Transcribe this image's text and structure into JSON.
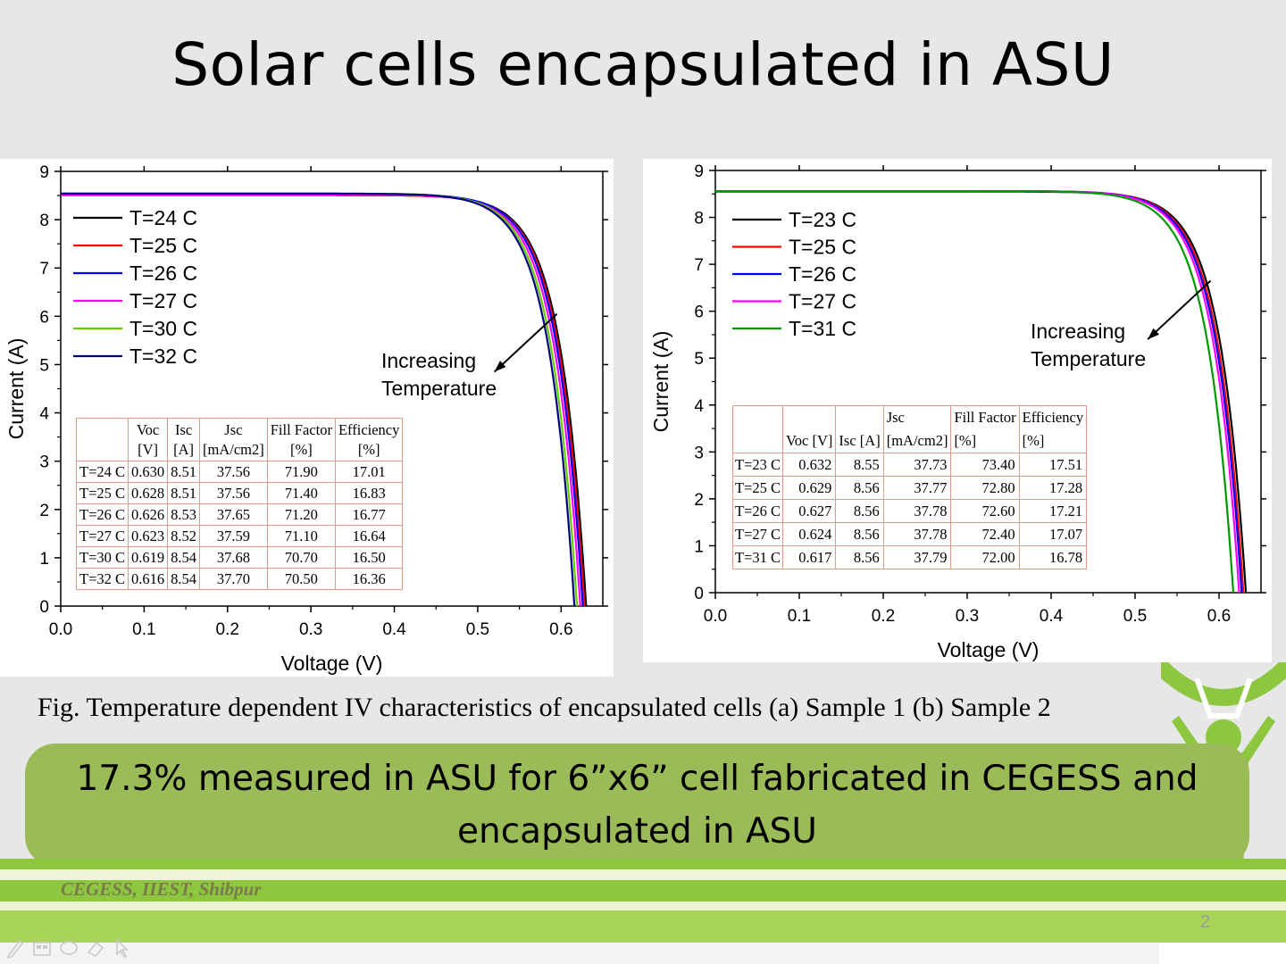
{
  "slide": {
    "title": "Solar cells encapsulated in ASU",
    "caption": "Fig. Temperature dependent IV characteristics of encapsulated cells (a) Sample 1 (b) Sample 2",
    "highlight_line1": "17.3% measured in ASU for 6”x6” cell fabricated in CEGESS and",
    "highlight_line2": "encapsulated in ASU",
    "footer": "CEGESS, IIEST, Shibpur",
    "page_number": "2"
  },
  "colors": {
    "background": "#e7e7e7",
    "highlight": "#9bbb59",
    "footer_band": "#8dc63f",
    "table_border": "#e39a86",
    "series": [
      "#000000",
      "#ff0000",
      "#0000ff",
      "#ff00ff",
      "#66cc00",
      "#000080",
      "#009900"
    ]
  },
  "toolbar_icons": [
    "pen-icon",
    "slides-icon",
    "chat-icon",
    "eraser-icon",
    "pointer-icon"
  ],
  "chart_data": [
    {
      "type": "line",
      "xlabel": "Voltage (V)",
      "ylabel": "Current (A)",
      "xlim": [
        0,
        0.65
      ],
      "ylim": [
        0,
        9
      ],
      "xticks": [
        "0.0",
        "0.1",
        "0.2",
        "0.3",
        "0.4",
        "0.5",
        "0.6"
      ],
      "yticks": [
        "0",
        "1",
        "2",
        "3",
        "4",
        "5",
        "6",
        "7",
        "8",
        "9"
      ],
      "legend_position": "upper-left",
      "annotation": {
        "line1": "Increasing",
        "line2": "Temperature",
        "arrow_from": [
          0.595,
          6.05
        ],
        "arrow_to": [
          0.52,
          4.85
        ]
      },
      "series": [
        {
          "name": "T=24 C",
          "color": "#000000",
          "voc": 0.63,
          "isc": 8.51
        },
        {
          "name": "T=25 C",
          "color": "#ff0000",
          "voc": 0.628,
          "isc": 8.51
        },
        {
          "name": "T=26 C",
          "color": "#0000ff",
          "voc": 0.626,
          "isc": 8.53
        },
        {
          "name": "T=27 C",
          "color": "#ff00ff",
          "voc": 0.623,
          "isc": 8.52
        },
        {
          "name": "T=30 C",
          "color": "#66cc00",
          "voc": 0.619,
          "isc": 8.54
        },
        {
          "name": "T=32 C",
          "color": "#000080",
          "voc": 0.616,
          "isc": 8.54
        }
      ],
      "table": {
        "headers": [
          [
            "",
            ""
          ],
          [
            "Voc",
            "[V]"
          ],
          [
            "Isc",
            "[A]"
          ],
          [
            "Jsc",
            "[mA/cm2]"
          ],
          [
            "Fill Factor",
            "[%]"
          ],
          [
            "Efficiency",
            "[%]"
          ]
        ],
        "rows": [
          [
            "T=24 C",
            "0.630",
            "8.51",
            "37.56",
            "71.90",
            "17.01"
          ],
          [
            "T=25 C",
            "0.628",
            "8.51",
            "37.56",
            "71.40",
            "16.83"
          ],
          [
            "T=26 C",
            "0.626",
            "8.53",
            "37.65",
            "71.20",
            "16.77"
          ],
          [
            "T=27 C",
            "0.623",
            "8.52",
            "37.59",
            "71.10",
            "16.64"
          ],
          [
            "T=30 C",
            "0.619",
            "8.54",
            "37.68",
            "70.70",
            "16.50"
          ],
          [
            "T=32 C",
            "0.616",
            "8.54",
            "37.70",
            "70.50",
            "16.36"
          ]
        ]
      }
    },
    {
      "type": "line",
      "xlabel": "Voltage (V)",
      "ylabel": "Current (A)",
      "xlim": [
        0,
        0.65
      ],
      "ylim": [
        0,
        9
      ],
      "xticks": [
        "0.0",
        "0.1",
        "0.2",
        "0.3",
        "0.4",
        "0.5",
        "0.6"
      ],
      "yticks": [
        "0",
        "1",
        "2",
        "3",
        "4",
        "5",
        "6",
        "7",
        "8",
        "9"
      ],
      "legend_position": "upper-left",
      "annotation": {
        "line1": "Increasing",
        "line2": "Temperature",
        "arrow_from": [
          0.59,
          6.65
        ],
        "arrow_to": [
          0.515,
          5.4
        ]
      },
      "series": [
        {
          "name": "T=23 C",
          "color": "#000000",
          "voc": 0.632,
          "isc": 8.55
        },
        {
          "name": "T=25 C",
          "color": "#ff0000",
          "voc": 0.629,
          "isc": 8.56
        },
        {
          "name": "T=26 C",
          "color": "#0000ff",
          "voc": 0.627,
          "isc": 8.56
        },
        {
          "name": "T=27 C",
          "color": "#ff00ff",
          "voc": 0.624,
          "isc": 8.56
        },
        {
          "name": "T=31 C",
          "color": "#009900",
          "voc": 0.617,
          "isc": 8.56
        }
      ],
      "table": {
        "headers": [
          [
            "",
            ""
          ],
          [
            "",
            "Voc [V]"
          ],
          [
            "",
            "Isc [A]"
          ],
          [
            "Jsc",
            "[mA/cm2]"
          ],
          [
            "Fill Factor",
            "[%]"
          ],
          [
            "Efficiency",
            "[%]"
          ]
        ],
        "rows": [
          [
            "T=23 C",
            "0.632",
            "8.55",
            "37.73",
            "73.40",
            "17.51"
          ],
          [
            "T=25 C",
            "0.629",
            "8.56",
            "37.77",
            "72.80",
            "17.28"
          ],
          [
            "T=26 C",
            "0.627",
            "8.56",
            "37.78",
            "72.60",
            "17.21"
          ],
          [
            "T=27 C",
            "0.624",
            "8.56",
            "37.78",
            "72.40",
            "17.07"
          ],
          [
            "T=31 C",
            "0.617",
            "8.56",
            "37.79",
            "72.00",
            "16.78"
          ]
        ]
      }
    }
  ]
}
